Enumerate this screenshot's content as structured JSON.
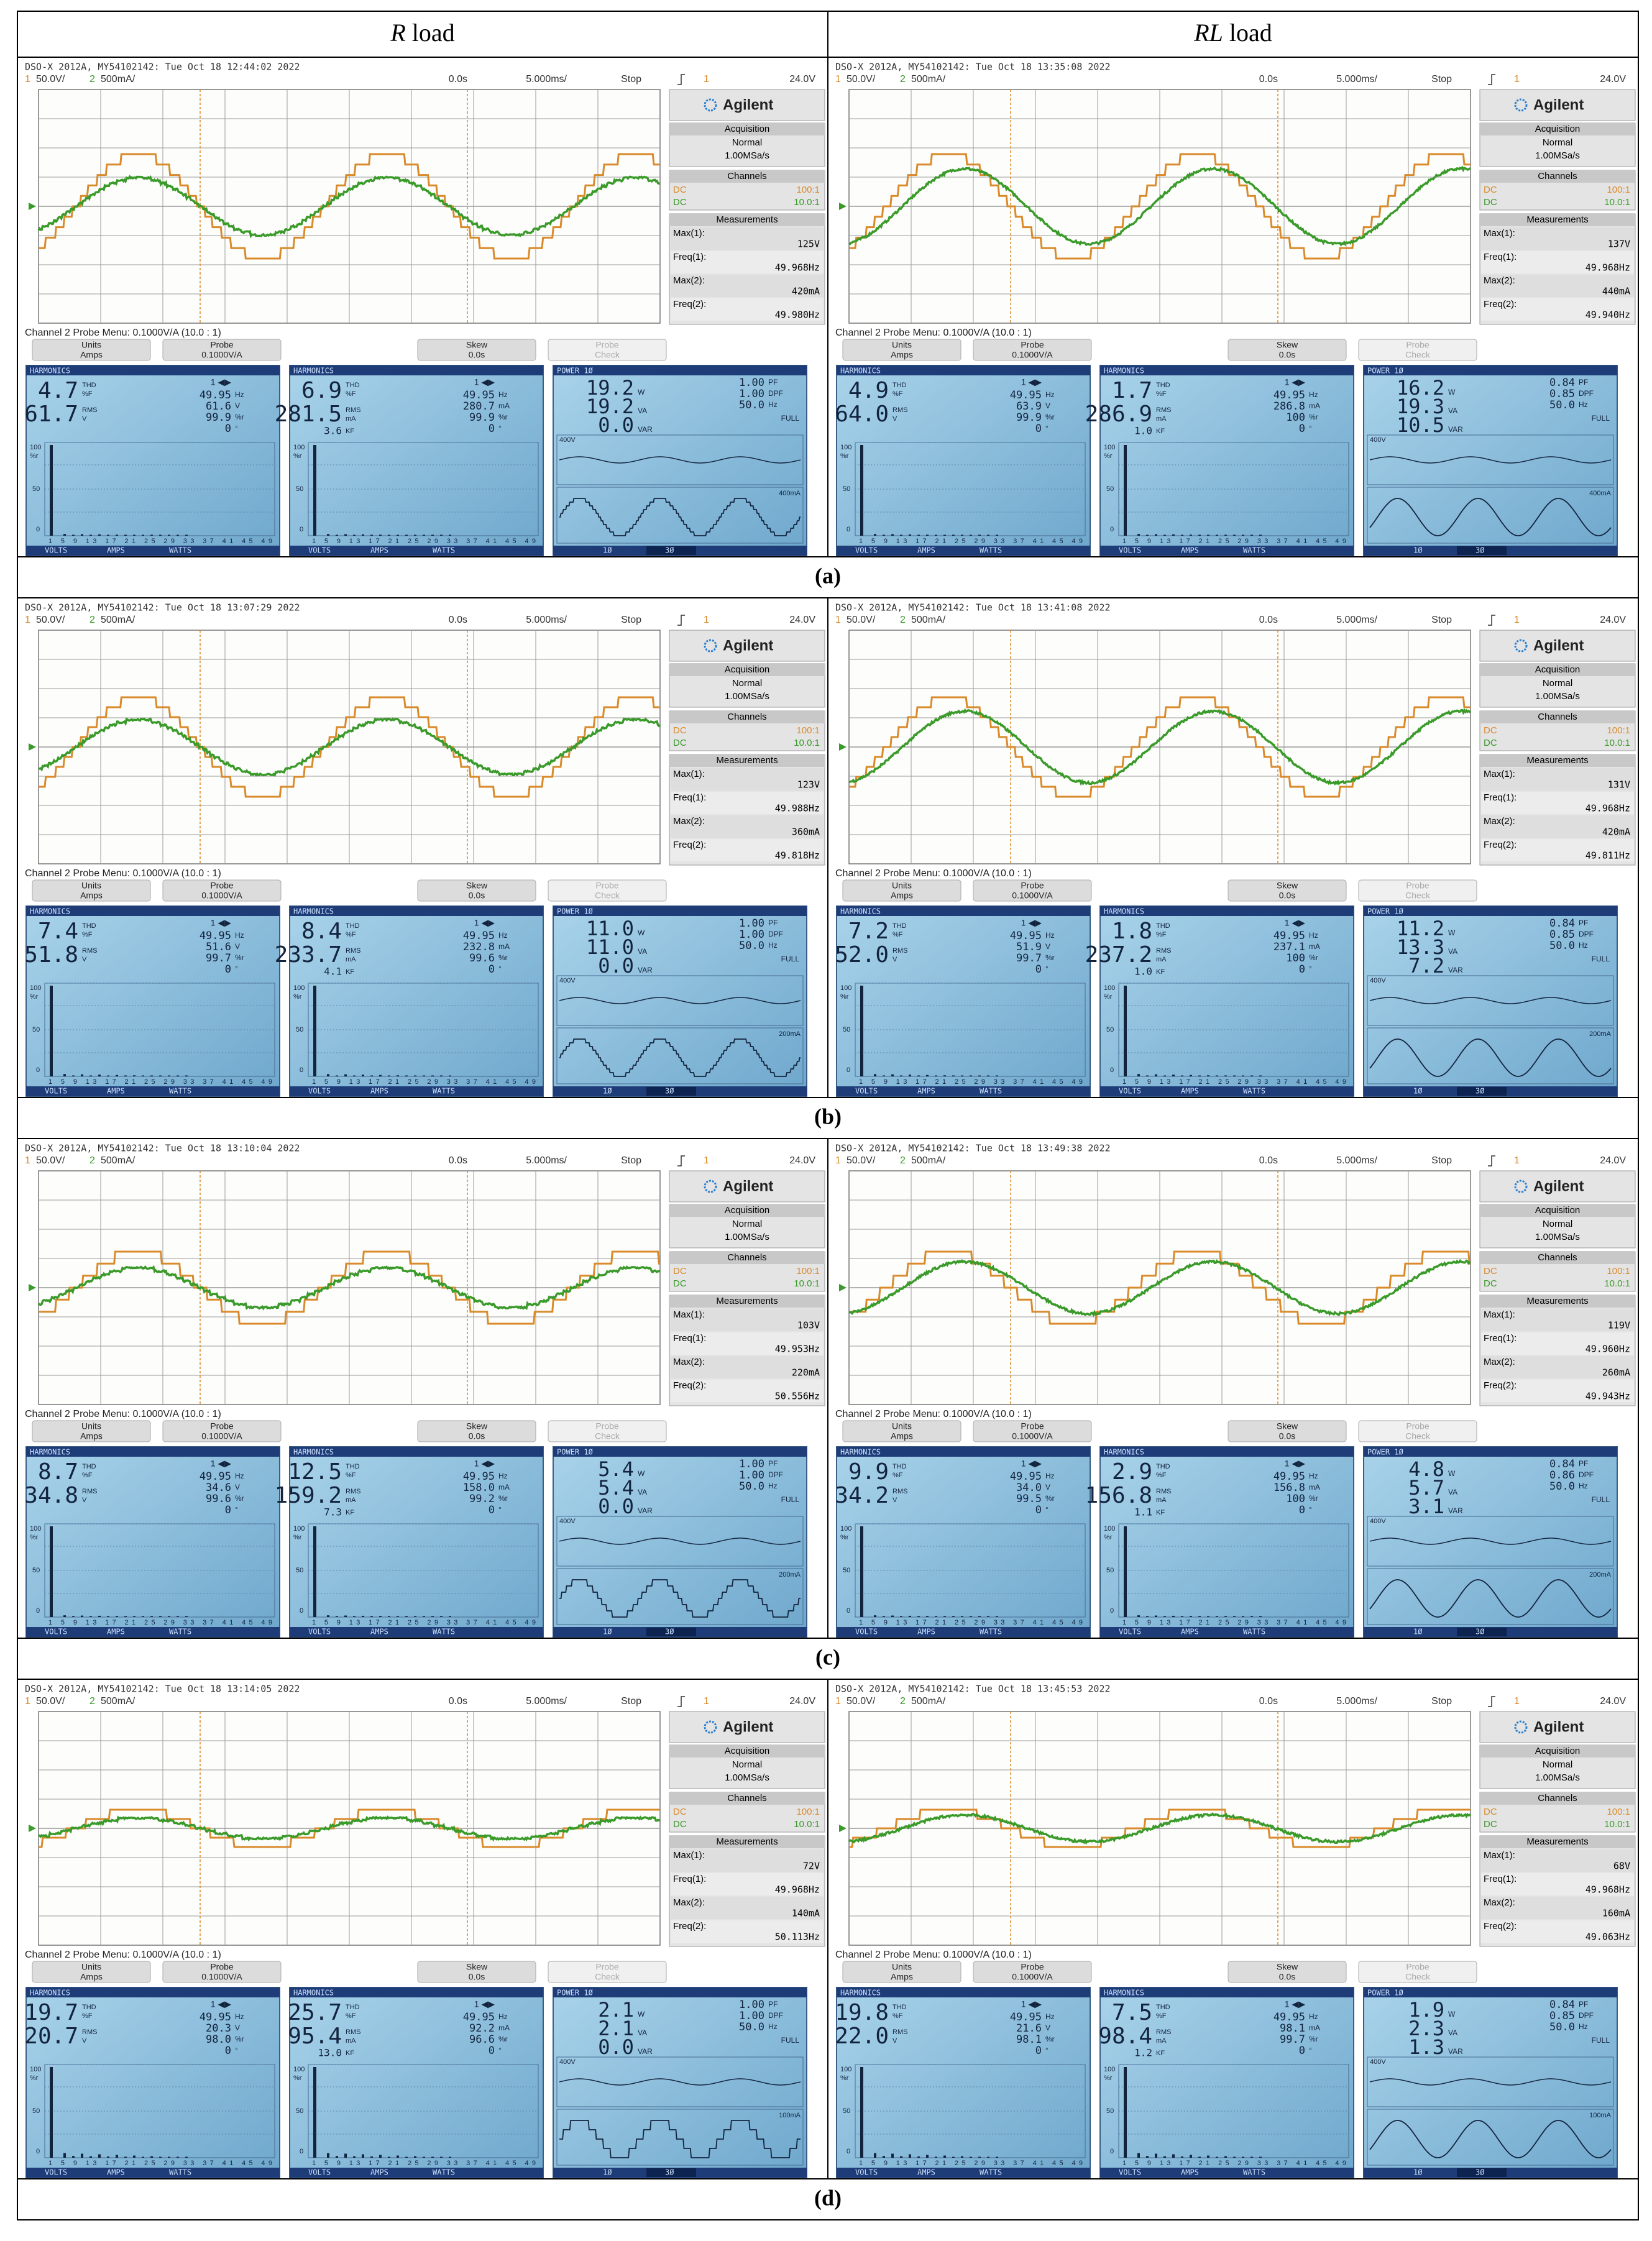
{
  "header": {
    "columns": [
      {
        "symbol": "R",
        "word": "load"
      },
      {
        "symbol": "RL",
        "word": "load"
      }
    ]
  },
  "scope": {
    "ch1": "1",
    "ch1_scale": "50.0V/",
    "ch2": "2",
    "ch2_scale": "500mA/",
    "delay": "0.0s",
    "timebase": "5.000ms/",
    "run": "Stop",
    "trig_src": "1",
    "trig_level": "24.0V",
    "brand": "Agilent",
    "acq_title": "Acquisition",
    "acq_mode": "Normal",
    "acq_rate": "1.00MSa/s",
    "channels": "Channels",
    "dc": "DC",
    "ch1_probe": "100:1",
    "ch2_probe": "10.0:1",
    "meas_title": "Measurements",
    "max1_label": "Max(1):",
    "freq1_label": "Freq(1):",
    "max2_label": "Max(2):",
    "freq2_label": "Freq(2):",
    "probe_menu": "Channel 2 Probe Menu: 0.1000V/A (10.0 : 1)",
    "softkeys": [
      [
        "Units",
        "Amps"
      ],
      [
        "Probe",
        "0.1000V/A"
      ],
      [
        "Skew",
        "0.0s"
      ],
      [
        "Probe",
        "Check"
      ]
    ]
  },
  "meter": {
    "harmonics": "HARMONICS",
    "power": "POWER 1Ø",
    "thd": "THD",
    "pct_f": "%F",
    "rms": "RMS",
    "v": "V",
    "ma": "mA",
    "kf": "KF",
    "pct_r": "%r",
    "hz": "Hz",
    "deg": "°",
    "phase_sel": "1 ◀▶",
    "w": "W",
    "va": "VA",
    "var": "VAR",
    "pf": "PF",
    "dpf": "DPF",
    "full": "FULL",
    "v_scale": "400V",
    "bar_ticks": [
      "100",
      "50",
      "0"
    ],
    "harm_ticks": "1 5 9 13 17 21 25 29 33 37 41 45 49",
    "tabs": [
      "VOLTS",
      "AMPS",
      "WATTS"
    ],
    "power_tabs": [
      "1Ø",
      "3Ø"
    ]
  },
  "rows": [
    {
      "caption": "(a)",
      "panels": [
        {
          "timestamp": "DSO-X 2012A, MY54102142: Tue Oct 18 12:44:02 2022",
          "max1": "125V",
          "freq1": "49.968Hz",
          "max2": "420mA",
          "freq2": "49.980Hz",
          "volts": {
            "thd": "4.7",
            "rms": "61.7",
            "freq": "49.95",
            "fund": "61.6",
            "pct_r": "99.9",
            "phase": "0"
          },
          "amps": {
            "thd": "6.9",
            "rms": "281.5",
            "kf": "3.6",
            "freq": "49.95",
            "fund": "280.7",
            "pct_r": "99.9",
            "phase": "0"
          },
          "power": {
            "w": "19.2",
            "va": "19.2",
            "var": "0.0",
            "pf": "1.00",
            "dpf": "1.00",
            "hz": "50.0",
            "i_scale": "400mA"
          }
        },
        {
          "timestamp": "DSO-X 2012A, MY54102142: Tue Oct 18 13:35:08 2022",
          "max1": "137V",
          "freq1": "49.968Hz",
          "max2": "440mA",
          "freq2": "49.940Hz",
          "volts": {
            "thd": "4.9",
            "rms": "64.0",
            "freq": "49.95",
            "fund": "63.9",
            "pct_r": "99.9",
            "phase": "0"
          },
          "amps": {
            "thd": "1.7",
            "rms": "286.9",
            "kf": "1.0",
            "freq": "49.95",
            "fund": "286.8",
            "pct_r": "100",
            "phase": "0"
          },
          "power": {
            "w": "16.2",
            "va": "19.3",
            "var": "10.5",
            "pf": "0.84",
            "dpf": "0.85",
            "hz": "50.0",
            "i_scale": "400mA"
          }
        }
      ]
    },
    {
      "caption": "(b)",
      "panels": [
        {
          "timestamp": "DSO-X 2012A, MY54102142: Tue Oct 18 13:07:29 2022",
          "max1": "123V",
          "freq1": "49.988Hz",
          "max2": "360mA",
          "freq2": "49.818Hz",
          "volts": {
            "thd": "7.4",
            "rms": "51.8",
            "freq": "49.95",
            "fund": "51.6",
            "pct_r": "99.7",
            "phase": "0"
          },
          "amps": {
            "thd": "8.4",
            "rms": "233.7",
            "kf": "4.1",
            "freq": "49.95",
            "fund": "232.8",
            "pct_r": "99.6",
            "phase": "0"
          },
          "power": {
            "w": "11.0",
            "va": "11.0",
            "var": "0.0",
            "pf": "1.00",
            "dpf": "1.00",
            "hz": "50.0",
            "i_scale": "200mA"
          }
        },
        {
          "timestamp": "DSO-X 2012A, MY54102142: Tue Oct 18 13:41:08 2022",
          "max1": "131V",
          "freq1": "49.968Hz",
          "max2": "420mA",
          "freq2": "49.811Hz",
          "volts": {
            "thd": "7.2",
            "rms": "52.0",
            "freq": "49.95",
            "fund": "51.9",
            "pct_r": "99.7",
            "phase": "0"
          },
          "amps": {
            "thd": "1.8",
            "rms": "237.2",
            "kf": "1.0",
            "freq": "49.95",
            "fund": "237.1",
            "pct_r": "100",
            "phase": "0"
          },
          "power": {
            "w": "11.2",
            "va": "13.3",
            "var": "7.2",
            "pf": "0.84",
            "dpf": "0.85",
            "hz": "50.0",
            "i_scale": "200mA"
          }
        }
      ]
    },
    {
      "caption": "(c)",
      "panels": [
        {
          "timestamp": "DSO-X 2012A, MY54102142: Tue Oct 18 13:10:04 2022",
          "max1": "103V",
          "freq1": "49.953Hz",
          "max2": "220mA",
          "freq2": "50.556Hz",
          "volts": {
            "thd": "8.7",
            "rms": "34.8",
            "freq": "49.95",
            "fund": "34.6",
            "pct_r": "99.6",
            "phase": "0"
          },
          "amps": {
            "thd": "12.5",
            "rms": "159.2",
            "kf": "7.3",
            "freq": "49.95",
            "fund": "158.0",
            "pct_r": "99.2",
            "phase": "0"
          },
          "power": {
            "w": "5.4",
            "va": "5.4",
            "var": "0.0",
            "pf": "1.00",
            "dpf": "1.00",
            "hz": "50.0",
            "i_scale": "200mA"
          }
        },
        {
          "timestamp": "DSO-X 2012A, MY54102142: Tue Oct 18 13:49:38 2022",
          "max1": "119V",
          "freq1": "49.960Hz",
          "max2": "260mA",
          "freq2": "49.943Hz",
          "volts": {
            "thd": "9.9",
            "rms": "34.2",
            "freq": "49.95",
            "fund": "34.0",
            "pct_r": "99.5",
            "phase": "0"
          },
          "amps": {
            "thd": "2.9",
            "rms": "156.8",
            "kf": "1.1",
            "freq": "49.95",
            "fund": "156.8",
            "pct_r": "100",
            "phase": "0"
          },
          "power": {
            "w": "4.8",
            "va": "5.7",
            "var": "3.1",
            "pf": "0.84",
            "dpf": "0.86",
            "hz": "50.0",
            "i_scale": "200mA"
          }
        }
      ]
    },
    {
      "caption": "(d)",
      "panels": [
        {
          "timestamp": "DSO-X 2012A, MY54102142: Tue Oct 18 13:14:05 2022",
          "max1": "72V",
          "freq1": "49.968Hz",
          "max2": "140mA",
          "freq2": "50.113Hz",
          "volts": {
            "thd": "19.7",
            "rms": "20.7",
            "freq": "49.95",
            "fund": "20.3",
            "pct_r": "98.0",
            "phase": "0"
          },
          "amps": {
            "thd": "25.7",
            "rms": "95.4",
            "kf": "13.0",
            "freq": "49.95",
            "fund": "92.2",
            "pct_r": "96.6",
            "phase": "0"
          },
          "power": {
            "w": "2.1",
            "va": "2.1",
            "var": "0.0",
            "pf": "1.00",
            "dpf": "1.00",
            "hz": "50.0",
            "i_scale": "100mA"
          }
        },
        {
          "timestamp": "DSO-X 2012A, MY54102142: Tue Oct 18 13:45:53 2022",
          "max1": "68V",
          "freq1": "49.968Hz",
          "max2": "160mA",
          "freq2": "49.063Hz",
          "volts": {
            "thd": "19.8",
            "rms": "22.0",
            "freq": "49.95",
            "fund": "21.6",
            "pct_r": "98.1",
            "phase": "0"
          },
          "amps": {
            "thd": "7.5",
            "rms": "98.4",
            "kf": "1.2",
            "freq": "49.95",
            "fund": "98.1",
            "pct_r": "99.7",
            "phase": "0"
          },
          "power": {
            "w": "1.9",
            "va": "2.3",
            "var": "1.3",
            "pf": "0.84",
            "dpf": "0.85",
            "hz": "50.0",
            "i_scale": "100mA"
          }
        }
      ]
    }
  ]
}
